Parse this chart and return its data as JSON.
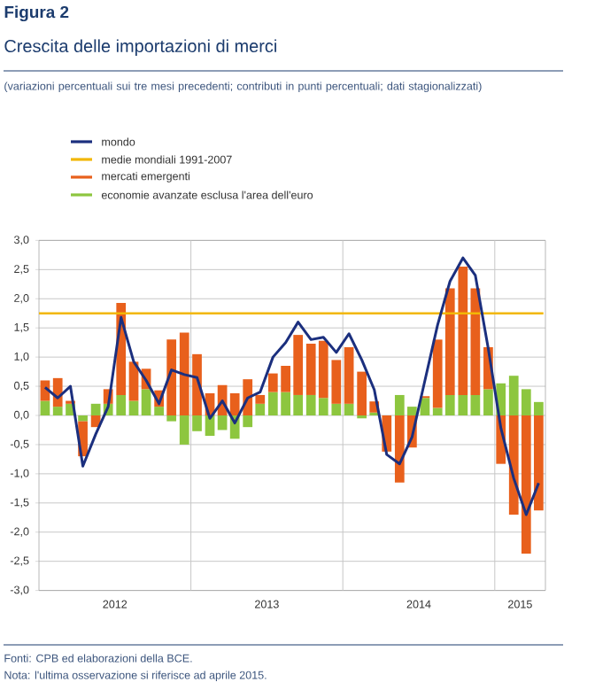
{
  "chart_data": {
    "type": "bar",
    "title": "Figura 2",
    "subtitle": "Crescita delle importazioni di merci",
    "annotations": [
      "(variazioni percentuali sui tre mesi precedenti; contributi in punti percentuali; dati stagionalizzati)",
      "Fonti: CPB ed elaborazioni della BCE.",
      "Nota: l'ultima osservazione si riferisce ad aprile 2015."
    ],
    "x": [
      "2012-01-16",
      "2012-02-15",
      "2012-03-16",
      "2012-04-15",
      "2012-05-16",
      "2012-06-15",
      "2012-07-16",
      "2012-08-16",
      "2012-09-15",
      "2012-10-16",
      "2012-11-15",
      "2012-12-16",
      "2013-01-16",
      "2013-02-15",
      "2013-03-16",
      "2013-04-15",
      "2013-05-16",
      "2013-06-15",
      "2013-07-16",
      "2013-08-16",
      "2013-09-15",
      "2013-10-16",
      "2013-11-15",
      "2013-12-16",
      "2014-01-16",
      "2014-02-15",
      "2014-03-16",
      "2014-04-15",
      "2014-05-16",
      "2014-06-15",
      "2014-07-16",
      "2014-08-16",
      "2014-09-15",
      "2014-10-16",
      "2014-11-15",
      "2014-12-16",
      "2015-01-16",
      "2015-02-15",
      "2015-03-16",
      "2015-04-15"
    ],
    "stacked": true,
    "series": [
      {
        "name": "mondo",
        "type": "line",
        "color": "#1b2f7e",
        "values": [
          0.48,
          0.3,
          0.5,
          -0.87,
          -0.32,
          0.15,
          1.68,
          0.92,
          0.6,
          0.2,
          0.78,
          0.7,
          0.65,
          -0.05,
          0.25,
          -0.13,
          0.3,
          0.4,
          1.0,
          1.25,
          1.6,
          1.3,
          1.34,
          1.08,
          1.4,
          0.95,
          0.44,
          -0.67,
          -0.83,
          -0.37,
          0.6,
          1.55,
          2.3,
          2.7,
          2.4,
          1.15,
          -0.22,
          -1.08,
          -1.7,
          -1.16
        ]
      },
      {
        "name": "economie avanzate esclusa l'area dell'euro",
        "color": "#8dc63f",
        "values": [
          0.25,
          0.15,
          0.2,
          -0.1,
          0.2,
          0.2,
          0.35,
          0.25,
          0.45,
          0.15,
          -0.1,
          -0.5,
          -0.27,
          -0.35,
          -0.25,
          -0.4,
          -0.2,
          0.2,
          0.4,
          0.4,
          0.35,
          0.35,
          0.3,
          0.2,
          0.2,
          -0.05,
          0.05,
          0.0,
          0.35,
          0.15,
          0.3,
          0.13,
          0.35,
          0.35,
          0.35,
          0.45,
          0.55,
          0.68,
          0.45,
          0.23
        ]
      },
      {
        "name": "mercati emergenti",
        "color": "#e8601c",
        "values": [
          0.35,
          0.49,
          0.05,
          -0.6,
          -0.2,
          0.25,
          1.58,
          0.67,
          0.35,
          0.28,
          1.3,
          1.42,
          1.05,
          0.38,
          0.52,
          0.38,
          0.62,
          0.15,
          0.32,
          0.45,
          1.03,
          0.88,
          0.98,
          0.75,
          0.97,
          0.75,
          0.19,
          -0.62,
          -1.15,
          -0.55,
          0.03,
          1.17,
          1.83,
          2.2,
          1.83,
          0.72,
          -0.83,
          -1.7,
          -2.37,
          -1.63
        ]
      }
    ],
    "ref_lines": [
      {
        "axis": "y",
        "value": 1.75,
        "label": "medie mondiali 1991-2007",
        "color": "#f2b705"
      }
    ],
    "xlim": [
      "2012-01-01",
      "2015-05-01"
    ],
    "xticks": [
      {
        "value": "2012-07-01",
        "label": "2012"
      },
      {
        "value": "2013-01-01",
        "label": null
      },
      {
        "value": "2013-07-01",
        "label": "2013"
      },
      {
        "value": "2014-01-01",
        "label": null
      },
      {
        "value": "2014-07-01",
        "label": "2014"
      },
      {
        "value": "2015-01-01",
        "label": null
      },
      {
        "value": "2015-03-01",
        "label": "2015"
      }
    ],
    "ylim": [
      -3,
      3
    ],
    "yticks": [
      {
        "value": -3,
        "label": "-3,0"
      },
      {
        "value": -2.5,
        "label": "-2,5"
      },
      {
        "value": -2,
        "label": "-2,0"
      },
      {
        "value": -1.5,
        "label": "-1,5"
      },
      {
        "value": -1,
        "label": "-1,0"
      },
      {
        "value": -0.5,
        "label": "-0,5"
      },
      {
        "value": 0,
        "label": "0,0"
      },
      {
        "value": 0.5,
        "label": "0,5"
      },
      {
        "value": 1,
        "label": "1,0"
      },
      {
        "value": 1.5,
        "label": "1,5"
      },
      {
        "value": 2,
        "label": "2,0"
      },
      {
        "value": 2.5,
        "label": "2,5"
      },
      {
        "value": 3,
        "label": "3,0"
      }
    ],
    "grid": true,
    "legend": "top left"
  }
}
